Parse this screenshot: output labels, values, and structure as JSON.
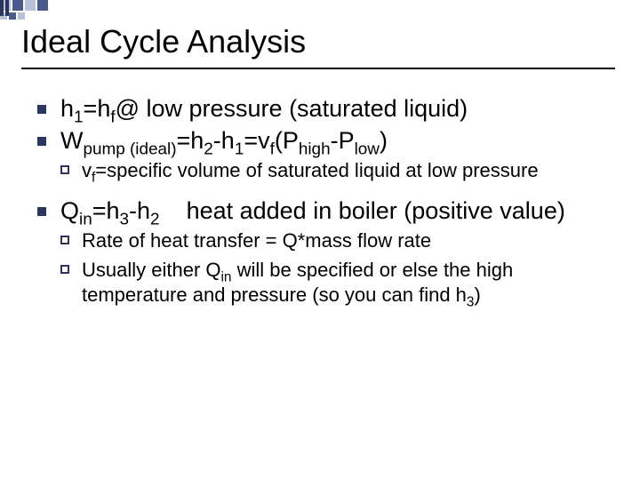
{
  "title": "Ideal Cycle Analysis",
  "colors": {
    "bullet_fill": "#2a3560",
    "bullet_border": "#2a3560",
    "deco_dark": "#4a5a8a",
    "deco_light": "#b8c0da",
    "text": "#000000",
    "bg": "#ffffff"
  },
  "items": [
    {
      "level": 1,
      "html": "h<sub>1</sub>=h<sub>f</sub>@ low pressure  (saturated liquid)"
    },
    {
      "level": 1,
      "html": "W<sub>pump (ideal)</sub>=h<sub>2</sub>-h<sub>1</sub>=v<sub>f</sub>(P<sub>high</sub>-P<sub>low</sub>)"
    },
    {
      "level": 2,
      "html": "v<sub>f</sub>=specific volume of saturated liquid at low pressure"
    },
    {
      "level": 0
    },
    {
      "level": 1,
      "html": "Q<sub>in</sub>=h<sub>3</sub>-h<sub>2</sub>&nbsp;&nbsp;&nbsp;&nbsp;heat added in boiler (positive value)"
    },
    {
      "level": 2,
      "html": "Rate of heat transfer = Q*mass flow rate"
    },
    {
      "level": 2,
      "html": "Usually either Q<sub>in</sub> will be specified or else the high temperature and pressure (so you can find h<sub>3</sub>)"
    }
  ]
}
